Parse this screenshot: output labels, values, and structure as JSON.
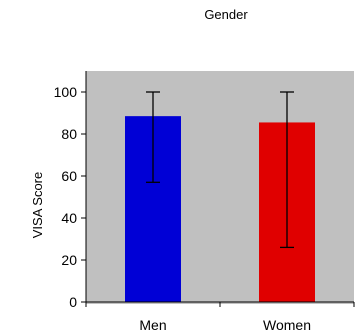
{
  "chart_data": {
    "type": "bar",
    "title": "Gender",
    "ylabel": "VISA Score",
    "xlabel": "",
    "categories": [
      "Men",
      "Women"
    ],
    "values": [
      88.5,
      85.5
    ],
    "error_bars": [
      {
        "low": 57,
        "high": 100
      },
      {
        "low": 26,
        "high": 100
      }
    ],
    "bar_colors": [
      "#0000d6",
      "#e00000"
    ],
    "ylim": [
      0,
      110
    ],
    "yticks": [
      0,
      20,
      40,
      60,
      80,
      100
    ],
    "ytick_labels": [
      "0",
      "20",
      "40",
      "60",
      "80",
      "100"
    ],
    "plot_background": "#c0c0c0",
    "grid": false,
    "legend": "none"
  }
}
